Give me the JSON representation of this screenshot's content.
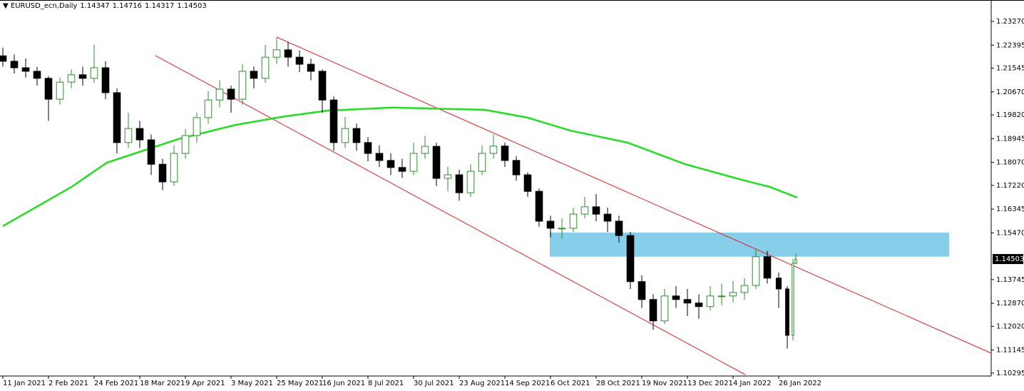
{
  "chart_data": {
    "type": "candlestick",
    "title": "EURUSD_ecn,Daily",
    "header_values": [
      1.14347,
      1.14716,
      1.14317,
      1.14503
    ],
    "up_color": "#2f8f2f",
    "down_color": "#000000",
    "x": [
      0,
      4,
      8,
      12,
      16,
      20,
      24,
      28,
      32,
      36,
      40,
      44,
      48,
      52,
      56,
      60,
      64,
      68,
      72,
      76,
      80,
      84,
      88,
      92,
      96,
      100,
      104,
      108,
      112,
      116,
      120,
      124,
      128,
      132,
      136,
      140,
      144,
      148,
      152,
      156,
      160,
      164,
      168,
      172,
      176,
      180,
      184,
      188,
      192,
      196,
      200,
      204,
      208,
      212,
      216,
      220,
      224,
      228,
      232,
      236,
      240,
      244,
      248,
      252,
      256,
      260,
      264,
      268,
      272,
      275,
      277,
      278
    ],
    "open": [
      1.22,
      1.218,
      1.2156,
      1.2143,
      1.2117,
      1.204,
      1.2103,
      1.213,
      1.2117,
      1.2156,
      1.2064,
      1.188,
      1.1932,
      1.189,
      1.18,
      1.1735,
      1.184,
      1.1906,
      1.1972,
      1.2037,
      1.2077,
      1.204,
      1.2143,
      1.2117,
      1.2195,
      1.2222,
      1.2195,
      1.2169,
      1.2143,
      1.2037,
      1.188,
      1.1932,
      1.188,
      1.184,
      1.1814,
      1.1788,
      1.1774,
      1.184,
      1.1866,
      1.1748,
      1.1761,
      1.1695,
      1.1774,
      1.184,
      1.1867,
      1.1814,
      1.1761,
      1.17,
      1.159,
      1.1564,
      1.1564,
      1.1616,
      1.1643,
      1.1616,
      1.159,
      1.1537,
      1.1367,
      1.1301,
      1.1222,
      1.1314,
      1.1301,
      1.1288,
      1.1275,
      1.1314,
      1.1314,
      1.1327,
      1.1353,
      1.1459,
      1.138,
      1.134,
      1.1169,
      1.14347
    ],
    "high": [
      1.223,
      1.2205,
      1.219,
      1.216,
      1.2125,
      1.212,
      1.215,
      1.216,
      1.224,
      1.218,
      1.208,
      1.199,
      1.196,
      1.191,
      1.182,
      1.187,
      1.193,
      1.199,
      1.207,
      1.211,
      1.209,
      1.217,
      1.216,
      1.224,
      1.2266,
      1.225,
      1.222,
      1.219,
      1.215,
      1.205,
      1.1975,
      1.195,
      1.19,
      1.187,
      1.184,
      1.182,
      1.188,
      1.1905,
      1.188,
      1.179,
      1.178,
      1.18,
      1.187,
      1.191,
      1.188,
      1.183,
      1.177,
      1.171,
      1.161,
      1.16,
      1.164,
      1.168,
      1.169,
      1.164,
      1.161,
      1.155,
      1.139,
      1.132,
      1.134,
      1.135,
      1.134,
      1.132,
      1.135,
      1.136,
      1.137,
      1.138,
      1.149,
      1.148,
      1.14,
      1.135,
      1.145,
      1.14716
    ],
    "low": [
      1.216,
      1.2135,
      1.212,
      1.209,
      1.196,
      1.202,
      1.208,
      1.209,
      1.21,
      1.204,
      1.184,
      1.186,
      1.186,
      1.176,
      1.1705,
      1.172,
      1.182,
      1.188,
      1.195,
      1.201,
      1.199,
      1.202,
      1.208,
      1.21,
      1.217,
      1.216,
      1.214,
      1.211,
      1.199,
      1.185,
      1.186,
      1.185,
      1.181,
      1.179,
      1.176,
      1.175,
      1.176,
      1.182,
      1.172,
      1.17,
      1.1665,
      1.168,
      1.176,
      1.182,
      1.179,
      1.174,
      1.168,
      1.157,
      1.153,
      1.1525,
      1.155,
      1.16,
      1.159,
      1.155,
      1.151,
      1.134,
      1.127,
      1.119,
      1.121,
      1.127,
      1.124,
      1.123,
      1.126,
      1.128,
      1.129,
      1.13,
      1.134,
      1.136,
      1.127,
      1.112,
      1.115,
      1.14317
    ],
    "close": [
      1.218,
      1.2156,
      1.2143,
      1.2117,
      1.204,
      1.2103,
      1.213,
      1.2117,
      1.2156,
      1.2064,
      1.188,
      1.1932,
      1.189,
      1.18,
      1.1735,
      1.184,
      1.1906,
      1.1972,
      1.2037,
      1.2077,
      1.204,
      1.2143,
      1.2117,
      1.2195,
      1.2222,
      1.2195,
      1.2169,
      1.2143,
      1.2037,
      1.188,
      1.1932,
      1.188,
      1.184,
      1.1814,
      1.1788,
      1.1774,
      1.184,
      1.1866,
      1.1748,
      1.1761,
      1.1695,
      1.1774,
      1.184,
      1.1867,
      1.1814,
      1.1761,
      1.17,
      1.159,
      1.1564,
      1.1564,
      1.1616,
      1.1643,
      1.1616,
      1.159,
      1.1537,
      1.1367,
      1.1301,
      1.1222,
      1.1314,
      1.1301,
      1.1288,
      1.1275,
      1.1314,
      1.1314,
      1.1327,
      1.1353,
      1.1459,
      1.138,
      1.134,
      1.1169,
      1.14347,
      1.14503
    ],
    "moving_average": {
      "color": "#22dd22",
      "x": [
        0,
        24,
        36.5,
        61.5,
        81.5,
        99,
        114,
        136.5,
        169,
        184,
        199,
        219,
        239,
        259,
        269,
        278.5
      ],
      "values": [
        1.1572,
        1.1716,
        1.1806,
        1.1893,
        1.1945,
        1.1977,
        1.1998,
        1.2009,
        1.2001,
        1.1972,
        1.1924,
        1.188,
        1.1801,
        1.1743,
        1.1716,
        1.1677
      ]
    },
    "trendlines": [
      {
        "color": "#dd2222",
        "x": [
          96,
          346.5
        ],
        "values": [
          1.2269,
          1.1103
        ]
      },
      {
        "color": "#dd2222",
        "x": [
          53.5,
          260.25
        ],
        "values": [
          1.2201,
          1.1024
        ]
      }
    ],
    "zone": {
      "color": "#87ceeb",
      "x": [
        191.75,
        331.75
      ],
      "y": [
        1.1459,
        1.1548
      ]
    },
    "last_price": 1.14503,
    "xlim": [
      -1,
      346.5
    ],
    "xticks": [
      {
        "value": 0,
        "label": "11 Jan 2021"
      },
      {
        "value": 16,
        "label": "2 Feb 2021"
      },
      {
        "value": 32,
        "label": "24 Feb 2021"
      },
      {
        "value": 48,
        "label": "18 Mar 2021"
      },
      {
        "value": 64,
        "label": "9 Apr 2021"
      },
      {
        "value": 80,
        "label": "3 May 2021"
      },
      {
        "value": 96,
        "label": "25 May 2021"
      },
      {
        "value": 112,
        "label": "16 Jun 2021"
      },
      {
        "value": 128,
        "label": "8 Jul 2021"
      },
      {
        "value": 144,
        "label": "30 Jul 2021"
      },
      {
        "value": 160,
        "label": "23 Aug 2021"
      },
      {
        "value": 176,
        "label": "14 Sep 2021"
      },
      {
        "value": 192,
        "label": "6 Oct 2021"
      },
      {
        "value": 208,
        "label": "28 Oct 2021"
      },
      {
        "value": 224,
        "label": "19 Nov 2021"
      },
      {
        "value": 240,
        "label": "13 Dec 2021"
      },
      {
        "value": 256,
        "label": "4 Jan 2022"
      },
      {
        "value": 272,
        "label": "26 Jan 2022"
      }
    ],
    "ylim": [
      1.1024,
      1.2406
    ],
    "yticks": [
      {
        "value": 1.2327,
        "label": "1.23270"
      },
      1.22395,
      1.21545,
      {
        "value": 1.2067,
        "label": "1.20670"
      },
      {
        "value": 1.1982,
        "label": "1.19820"
      },
      1.18945,
      {
        "value": 1.1807,
        "label": "1.18070"
      },
      {
        "value": 1.1722,
        "label": "1.17220"
      },
      1.16345,
      {
        "value": 1.1547,
        "label": "1.15470"
      },
      1.13745,
      {
        "value": 1.1287,
        "label": "1.12870"
      },
      {
        "value": 1.1202,
        "label": "1.12020"
      },
      1.11145,
      1.10295
    ]
  }
}
